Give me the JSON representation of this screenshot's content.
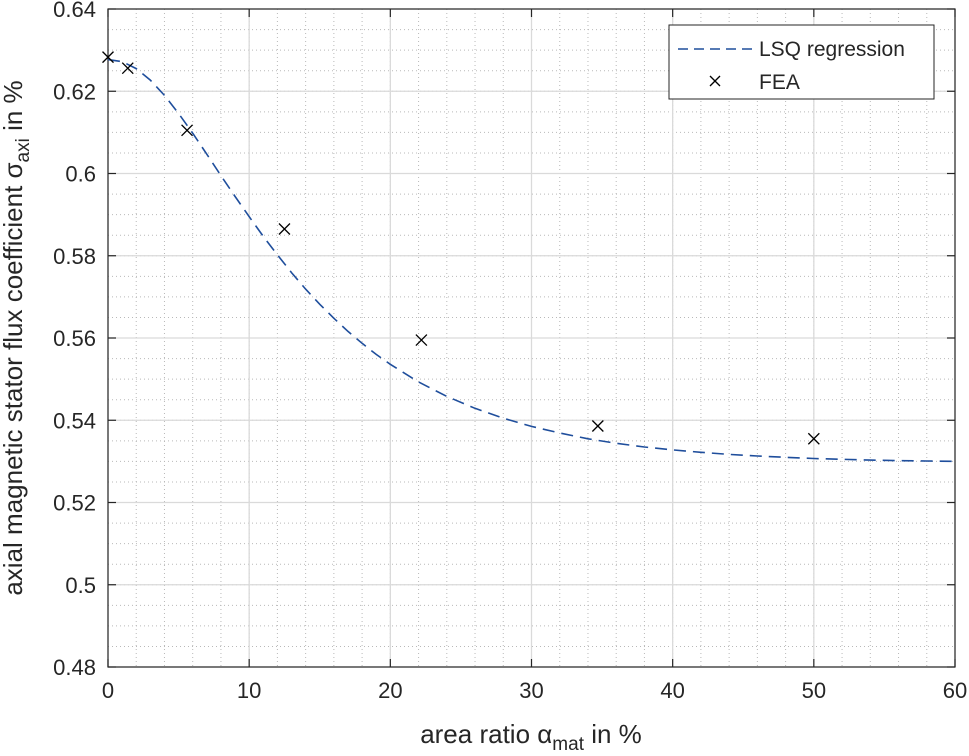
{
  "chart_data": {
    "type": "line",
    "xlabel": "area ratio α",
    "xlabel_sub": "mat",
    "xlabel_suffix": " in %",
    "ylabel": "axial magnetic stator flux coefficient σ",
    "ylabel_sub": "axi",
    "ylabel_suffix": " in %",
    "xlim": [
      0,
      60
    ],
    "ylim": [
      0.48,
      0.64
    ],
    "x_ticks": [
      0,
      10,
      20,
      30,
      40,
      50,
      60
    ],
    "x_tick_labels": [
      "0",
      "10",
      "20",
      "30",
      "40",
      "50",
      "60"
    ],
    "y_ticks": [
      0.48,
      0.5,
      0.52,
      0.54,
      0.56,
      0.58,
      0.6,
      0.62,
      0.64
    ],
    "y_tick_labels": [
      "0.48",
      "0.5",
      "0.52",
      "0.54",
      "0.56",
      "0.58",
      "0.6",
      "0.62",
      "0.64"
    ],
    "grid": true,
    "minor_grid": true,
    "legend_position": "top-right",
    "series": [
      {
        "name": "LSQ regression",
        "style": "dashed",
        "color": "#1f4e9c",
        "x": [
          0,
          1,
          2,
          3,
          4,
          5,
          6,
          7,
          8,
          9,
          10,
          11,
          12,
          13,
          14,
          15,
          16,
          17,
          18,
          19,
          20,
          22,
          24,
          26,
          28,
          30,
          32,
          34,
          36,
          38,
          40,
          42,
          44,
          46,
          48,
          50,
          52,
          54,
          56,
          58,
          60
        ],
        "y": [
          0.6277,
          0.6272,
          0.6255,
          0.6227,
          0.619,
          0.6146,
          0.6098,
          0.6047,
          0.5995,
          0.5944,
          0.5895,
          0.5847,
          0.5802,
          0.5759,
          0.5719,
          0.5682,
          0.5648,
          0.5616,
          0.5587,
          0.556,
          0.5536,
          0.5493,
          0.5458,
          0.5429,
          0.5405,
          0.5385,
          0.5369,
          0.5355,
          0.5344,
          0.5335,
          0.5328,
          0.5322,
          0.5317,
          0.5313,
          0.531,
          0.5307,
          0.5305,
          0.5303,
          0.5302,
          0.5301,
          0.53
        ]
      },
      {
        "name": "FEA",
        "style": "markers",
        "marker": "x",
        "color": "#000000",
        "x": [
          0,
          1.4,
          5.6,
          12.5,
          22.2,
          34.7,
          50
        ],
        "y": [
          0.6283,
          0.6256,
          0.6105,
          0.5865,
          0.5595,
          0.5386,
          0.5355
        ]
      }
    ]
  }
}
